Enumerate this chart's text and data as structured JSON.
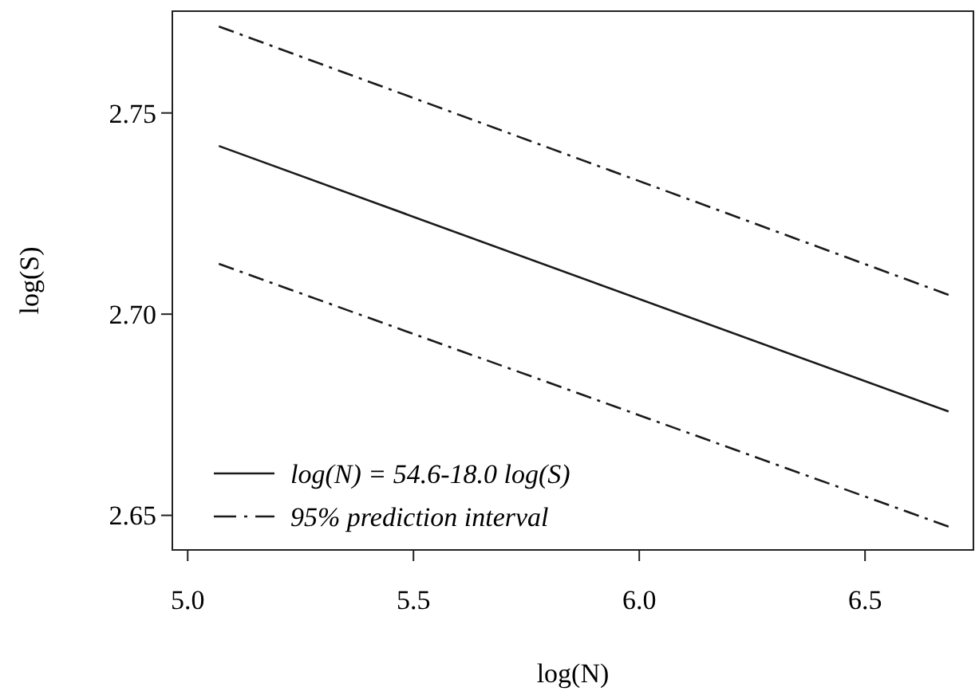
{
  "chart_data": {
    "type": "line",
    "xlabel": "log(N)",
    "ylabel": "log(S)",
    "xlim": [
      4.966,
      6.74
    ],
    "ylim": [
      2.6414,
      2.7753
    ],
    "xticks": [
      {
        "value": 5,
        "label": "5.0"
      },
      5.5,
      {
        "value": 6,
        "label": "6.0"
      },
      6.5
    ],
    "yticks": [
      2.75,
      {
        "value": 2.7,
        "label": "2.70"
      },
      2.65
    ],
    "legend": "bottom left",
    "grid": false,
    "x": [
      5.069,
      6.685
    ],
    "series": [
      {
        "name": "log(N) = 54.6-18.0 log(S)",
        "color": "#1a1a1a",
        "line_style": "solid",
        "values": [
          2.7418,
          2.6758
        ]
      },
      {
        "name": "95% prediction interval",
        "color": "#1a1a1a",
        "line_style": "dashed",
        "values": [
          2.7715,
          2.7048
        ]
      },
      {
        "color": "#1a1a1a",
        "line_style": "dashed",
        "values": [
          2.7125,
          2.6472
        ]
      }
    ]
  }
}
